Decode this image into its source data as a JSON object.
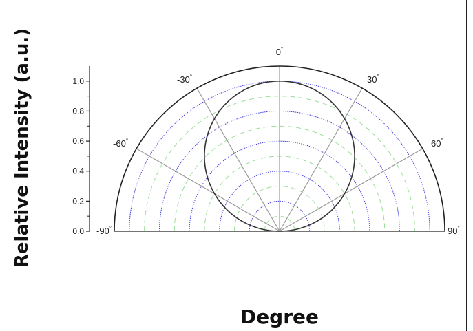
{
  "chart_data": {
    "type": "polar",
    "xlabel": "Degree",
    "ylabel": "Relative Intensity (a.u.)",
    "angular_range": [
      -90,
      90
    ],
    "angle_ticks": [
      -90,
      -60,
      -30,
      0,
      30,
      60,
      90
    ],
    "angle_tick_labels": [
      "-90",
      "-60",
      "-30",
      "0",
      "30",
      "60",
      "90"
    ],
    "angle_unit_symbol": "°",
    "radial_range": [
      0,
      1.1
    ],
    "radial_ticks": [
      0.0,
      0.2,
      0.4,
      0.6,
      0.8,
      1.0
    ],
    "radial_tick_labels": [
      "0.0",
      "0.2",
      "0.4",
      "0.6",
      "0.8",
      "1.0"
    ],
    "grid": true,
    "major_grid_color": "#4444dd",
    "minor_grid_color": "#99dd99",
    "series": [
      {
        "function": "cos",
        "angles": [
          -90,
          -75,
          -60,
          -45,
          -30,
          -15,
          0,
          15,
          30,
          45,
          60,
          75,
          90
        ],
        "values": [
          0.0,
          0.26,
          0.5,
          0.71,
          0.87,
          0.97,
          1.0,
          0.97,
          0.87,
          0.71,
          0.5,
          0.26,
          0.0
        ],
        "color": "#333333"
      }
    ]
  }
}
